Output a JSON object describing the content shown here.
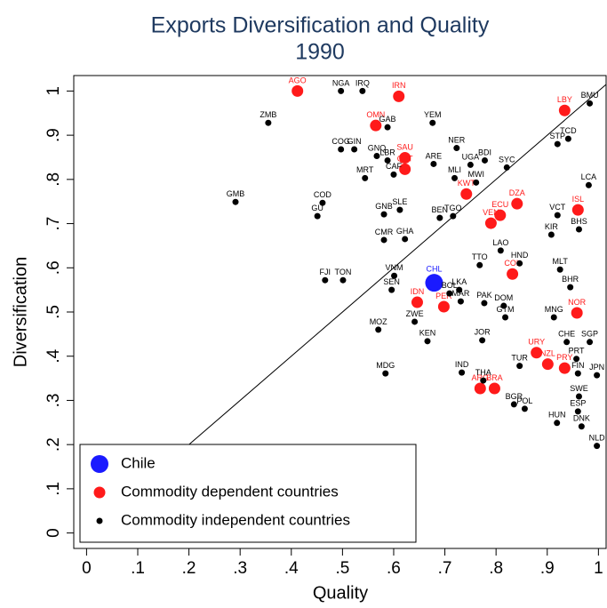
{
  "chart_data": {
    "type": "scatter",
    "title": "Exports Diversification and Quality",
    "subtitle": "1990",
    "x_label": "Quality",
    "y_label": "Diversification",
    "xlim": [
      -0.025,
      1.015
    ],
    "ylim": [
      -0.035,
      1.035
    ],
    "xticks": [
      0,
      {
        "value": 0.1,
        "label": ".1"
      },
      {
        "value": 0.2,
        "label": ".2"
      },
      {
        "value": 0.3,
        "label": ".3"
      },
      {
        "value": 0.4,
        "label": ".4"
      },
      {
        "value": 0.5,
        "label": ".5"
      },
      {
        "value": 0.6,
        "label": ".6"
      },
      {
        "value": 0.7,
        "label": ".7"
      },
      {
        "value": 0.8,
        "label": ".8"
      },
      {
        "value": 0.9,
        "label": ".9"
      },
      1
    ],
    "yticks": [
      0,
      {
        "value": 0.1,
        "label": ".1"
      },
      {
        "value": 0.2,
        "label": ".2"
      },
      {
        "value": 0.3,
        "label": ".3"
      },
      {
        "value": 0.4,
        "label": ".4"
      },
      {
        "value": 0.5,
        "label": ".5"
      },
      {
        "value": 0.6,
        "label": ".6"
      },
      {
        "value": 0.7,
        "label": ".7"
      },
      {
        "value": 0.8,
        "label": ".8"
      },
      {
        "value": 0.9,
        "label": ".9"
      },
      1
    ],
    "diagonal": true,
    "legend": "bottom-left",
    "series": [
      {
        "name": "Chile",
        "color": "#1a1aff",
        "labels": [
          "CHL"
        ],
        "x": [
          0.679
        ],
        "values": [
          0.566
        ]
      },
      {
        "name": "Commodity dependent countries",
        "color": "#ff1a1a",
        "labels": [
          "AGO",
          "IRN",
          "OMN",
          "LBY",
          "SAU",
          "QAT",
          "KWT",
          "DZA",
          "ECU",
          "VEN",
          "ISL",
          "COL",
          "IDN",
          "PER",
          "NOR",
          "URY",
          "NZL",
          "PRY",
          "ARG",
          "BRA"
        ],
        "x": [
          0.412,
          0.61,
          0.565,
          0.934,
          0.622,
          0.622,
          0.742,
          0.841,
          0.808,
          0.79,
          0.96,
          0.832,
          0.646,
          0.698,
          0.958,
          0.879,
          0.901,
          0.934,
          0.769,
          0.797
        ],
        "values": [
          1.0,
          0.988,
          0.922,
          0.956,
          0.849,
          0.823,
          0.767,
          0.745,
          0.719,
          0.701,
          0.731,
          0.586,
          0.522,
          0.512,
          0.498,
          0.408,
          0.382,
          0.373,
          0.327,
          0.327
        ]
      },
      {
        "name": "Commodity independent countries",
        "color": "#000000",
        "labels": [
          "NGA",
          "IRQ",
          "ZMB",
          "GAB",
          "YEM",
          "BMU",
          "COG",
          "GIN",
          "NER",
          "UGA",
          "BDI",
          "TCD",
          "STP",
          "GNQ",
          "LBR",
          "ARE",
          "SYC",
          "MRT",
          "CAF",
          "MLI",
          "MWI",
          "LCA",
          "GMB",
          "COD",
          "GU",
          "GNB",
          "SLE",
          "BEN",
          "TGO",
          "VCT",
          "BHS",
          "KIR",
          "GHA",
          "CMR",
          "LAO",
          "MLT",
          "TTO",
          "HND",
          "FJI",
          "TON",
          "VNM",
          "SEN",
          "BHR",
          "LKA",
          "BOL",
          "MNG",
          "ZWE",
          "MOZ",
          "KEN",
          "JOR",
          "CHE",
          "SGP",
          "IND",
          "THA",
          "MDG",
          "JPN",
          "BGR",
          "POL",
          "HUN",
          "NLD",
          "SWE",
          "MAR",
          "PAK",
          "DOM",
          "GTM",
          "TUR",
          "PRT",
          "FIN",
          "ESP",
          "DNK"
        ],
        "x": [
          0.497,
          0.539,
          0.355,
          0.588,
          0.676,
          0.983,
          0.497,
          0.523,
          0.723,
          0.75,
          0.778,
          0.941,
          0.92,
          0.567,
          0.588,
          0.678,
          0.821,
          0.544,
          0.6,
          0.719,
          0.761,
          0.981,
          0.291,
          0.461,
          0.451,
          0.581,
          0.612,
          0.69,
          0.716,
          0.92,
          0.962,
          0.908,
          0.622,
          0.581,
          0.809,
          0.925,
          0.768,
          0.846,
          0.466,
          0.501,
          0.601,
          0.596,
          0.945,
          0.728,
          0.709,
          0.913,
          0.641,
          0.57,
          0.666,
          0.773,
          0.938,
          0.983,
          0.733,
          0.775,
          0.584,
          0.997,
          0.835,
          0.856,
          0.919,
          0.997,
          0.962,
          0.731,
          0.777,
          0.815,
          0.818,
          0.846,
          0.957,
          0.96,
          0.96,
          0.967
        ],
        "values": [
          1.0,
          1.0,
          0.928,
          0.918,
          0.928,
          0.972,
          0.868,
          0.868,
          0.871,
          0.833,
          0.843,
          0.892,
          0.88,
          0.853,
          0.843,
          0.835,
          0.827,
          0.803,
          0.811,
          0.803,
          0.793,
          0.787,
          0.749,
          0.747,
          0.717,
          0.721,
          0.731,
          0.713,
          0.717,
          0.719,
          0.687,
          0.675,
          0.665,
          0.663,
          0.639,
          0.596,
          0.606,
          0.61,
          0.572,
          0.572,
          0.582,
          0.55,
          0.556,
          0.55,
          0.542,
          0.488,
          0.478,
          0.46,
          0.434,
          0.436,
          0.432,
          0.432,
          0.363,
          0.345,
          0.361,
          0.357,
          0.291,
          0.281,
          0.249,
          0.197,
          0.309,
          0.524,
          0.52,
          0.514,
          0.488,
          0.378,
          0.394,
          0.361,
          0.275,
          0.241
        ]
      }
    ]
  }
}
